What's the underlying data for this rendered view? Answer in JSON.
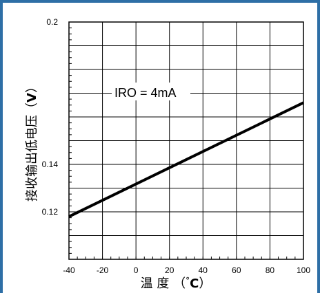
{
  "chart_data": {
    "type": "line",
    "title": "",
    "xlabel_parts": [
      "温 度 （",
      "°",
      "C",
      "）"
    ],
    "ylabel_parts": [
      "接收输出低电压（",
      "V",
      "）"
    ],
    "xlim": [
      -40,
      100
    ],
    "ylim": [
      0.1,
      0.2
    ],
    "x_ticks": [
      -40,
      -20,
      0,
      20,
      40,
      60,
      80,
      100
    ],
    "x_tick_labels": [
      "-40",
      "-20",
      "0",
      "20",
      "40",
      "60",
      "80",
      "100"
    ],
    "y_ticks": [
      0.12,
      0.14,
      0.2
    ],
    "y_tick_labels": [
      "0.12",
      "0.14",
      "0.2"
    ],
    "grid": true,
    "annotation": "IRO = 4mA",
    "series": [
      {
        "x": [
          -40,
          100
        ],
        "y": [
          0.118,
          0.166
        ]
      }
    ]
  }
}
